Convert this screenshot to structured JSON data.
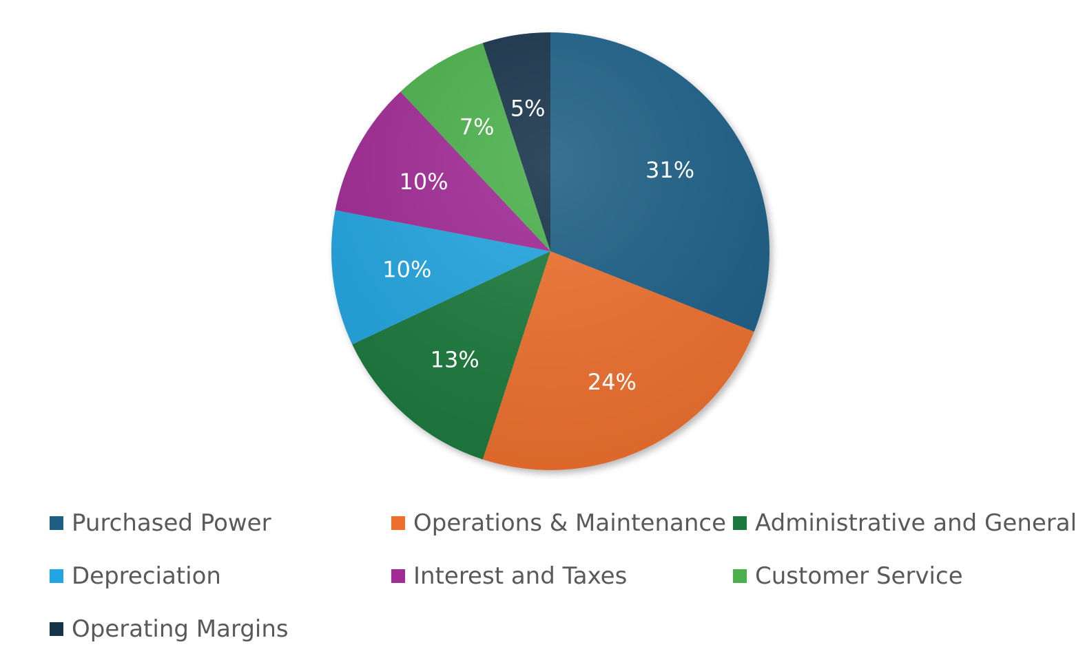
{
  "chart_data": {
    "type": "pie",
    "title": "",
    "categories": [
      "Purchased Power",
      "Operations & Maintenance",
      "Administrative and General",
      "Depreciation",
      "Interest and Taxes",
      "Customer Service",
      "Operating Margins"
    ],
    "values": [
      31,
      24,
      13,
      10,
      10,
      7,
      5
    ],
    "data_labels": [
      "31%",
      "24%",
      "13%",
      "10%",
      "10%",
      "7%",
      "5%"
    ],
    "colors": [
      "#1f5f86",
      "#ee6f2d",
      "#1a7a3e",
      "#22a5e0",
      "#a02c95",
      "#4cb04c",
      "#153349"
    ],
    "legend_position": "bottom"
  }
}
